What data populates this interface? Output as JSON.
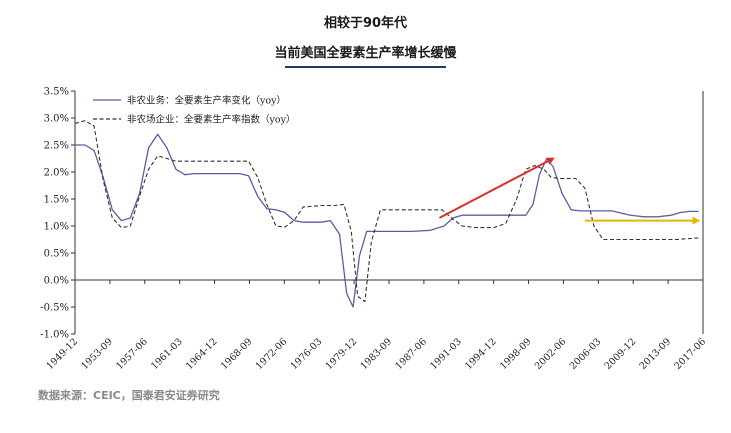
{
  "header": {
    "title_line1": "相较于90年代",
    "title_line2": "当前美国全要素生产率增长缓慢"
  },
  "source": "数据来源：CEIC，国泰君安证券研究",
  "colors": {
    "series1": "#5b5ea6",
    "series2": "#333333",
    "arrow_red": "#d9302a",
    "arrow_yellow": "#e8b400",
    "title_rule": "#1f3a6b"
  },
  "chart_data": {
    "type": "line",
    "x_tick_labels": [
      "1949-12",
      "1953-09",
      "1957-06",
      "1961-03",
      "1964-12",
      "1968-09",
      "1972-06",
      "1976-03",
      "1979-12",
      "1983-09",
      "1987-06",
      "1991-03",
      "1994-12",
      "1998-09",
      "2002-06",
      "2006-03",
      "2009-12",
      "2013-09",
      "2017-06"
    ],
    "y_tick_labels": [
      "3.5%",
      "3.0%",
      "2.5%",
      "2.0%",
      "1.5%",
      "1.0%",
      "0.5%",
      "0.0%",
      "-0.5%",
      "-1.0%"
    ],
    "ylim": [
      -1.0,
      3.5
    ],
    "xlim": [
      1949.9,
      2019.0
    ],
    "grid": false,
    "legend_position": "top-left",
    "series": [
      {
        "name": "非农业务：全要素生产率变化（yoy）",
        "style": "solid",
        "x": [
          1949.9,
          1951.0,
          1952.0,
          1953.0,
          1954.0,
          1955.0,
          1956.0,
          1957.0,
          1958.0,
          1959.0,
          1960.0,
          1961.0,
          1962.0,
          1963.0,
          1964.0,
          1965.0,
          1966.0,
          1967.0,
          1968.0,
          1969.0,
          1970.0,
          1971.0,
          1972.0,
          1973.0,
          1974.0,
          1975.0,
          1976.0,
          1977.0,
          1978.0,
          1979.0,
          1979.8,
          1980.5,
          1981.2,
          1982.0,
          1982.8,
          1983.8,
          1985.0,
          1987.0,
          1989.0,
          1990.5,
          1991.5,
          1992.5,
          1994.0,
          1996.0,
          1998.0,
          1999.5,
          2000.3,
          2001.0,
          2001.8,
          2002.5,
          2003.5,
          2004.5,
          2005.5,
          2007.0,
          2009.0,
          2011.0,
          2012.5,
          2014.0,
          2015.5,
          2016.5,
          2017.5,
          2018.5
        ],
        "values": [
          2.5,
          2.5,
          2.4,
          1.9,
          1.3,
          1.1,
          1.15,
          1.6,
          2.45,
          2.7,
          2.45,
          2.05,
          1.95,
          1.97,
          1.97,
          1.97,
          1.97,
          1.97,
          1.97,
          1.93,
          1.55,
          1.32,
          1.3,
          1.25,
          1.1,
          1.07,
          1.07,
          1.07,
          1.1,
          0.85,
          -0.25,
          -0.5,
          0.45,
          0.9,
          0.9,
          0.9,
          0.9,
          0.9,
          0.92,
          1.0,
          1.15,
          1.2,
          1.2,
          1.2,
          1.2,
          1.2,
          1.4,
          1.95,
          2.25,
          2.1,
          1.6,
          1.3,
          1.28,
          1.28,
          1.28,
          1.2,
          1.17,
          1.17,
          1.2,
          1.25,
          1.27,
          1.27
        ]
      },
      {
        "name": "非农场企业：全要素生产率指数（yoy）",
        "style": "dashed",
        "x": [
          1949.9,
          1951.0,
          1952.0,
          1953.0,
          1954.0,
          1955.0,
          1956.0,
          1957.0,
          1958.0,
          1959.0,
          1960.0,
          1961.0,
          1962.0,
          1964.0,
          1966.0,
          1968.0,
          1969.0,
          1970.0,
          1971.0,
          1972.0,
          1973.0,
          1974.0,
          1975.0,
          1977.0,
          1978.5,
          1979.5,
          1980.3,
          1981.0,
          1981.8,
          1982.5,
          1983.5,
          1985.0,
          1987.0,
          1989.0,
          1990.3,
          1991.3,
          1992.5,
          1994.0,
          1996.0,
          1997.3,
          1998.5,
          1999.5,
          2000.5,
          2001.5,
          2002.3,
          2003.3,
          2005.0,
          2006.0,
          2007.0,
          2008.0,
          2010.0,
          2012.0,
          2014.0,
          2016.0,
          2018.5
        ],
        "values": [
          2.9,
          2.95,
          2.85,
          1.85,
          1.15,
          0.97,
          1.0,
          1.55,
          2.05,
          2.3,
          2.25,
          2.2,
          2.2,
          2.2,
          2.2,
          2.2,
          2.2,
          1.9,
          1.4,
          1.0,
          0.98,
          1.1,
          1.35,
          1.38,
          1.38,
          1.4,
          0.9,
          -0.3,
          -0.4,
          0.7,
          1.3,
          1.3,
          1.3,
          1.3,
          1.3,
          1.15,
          1.0,
          0.97,
          0.97,
          1.05,
          1.5,
          2.05,
          2.12,
          2.05,
          1.9,
          1.88,
          1.88,
          1.7,
          1.0,
          0.75,
          0.75,
          0.75,
          0.75,
          0.75,
          0.78
        ]
      }
    ],
    "annotations": [
      {
        "kind": "arrow",
        "color": "red",
        "from": {
          "x": 1990.0,
          "y": 1.15
        },
        "to": {
          "x": 2002.5,
          "y": 2.25
        }
      },
      {
        "kind": "arrow",
        "color": "yellow",
        "from": {
          "x": 2006.0,
          "y": 1.1
        },
        "to": {
          "x": 2018.5,
          "y": 1.1
        }
      }
    ]
  }
}
